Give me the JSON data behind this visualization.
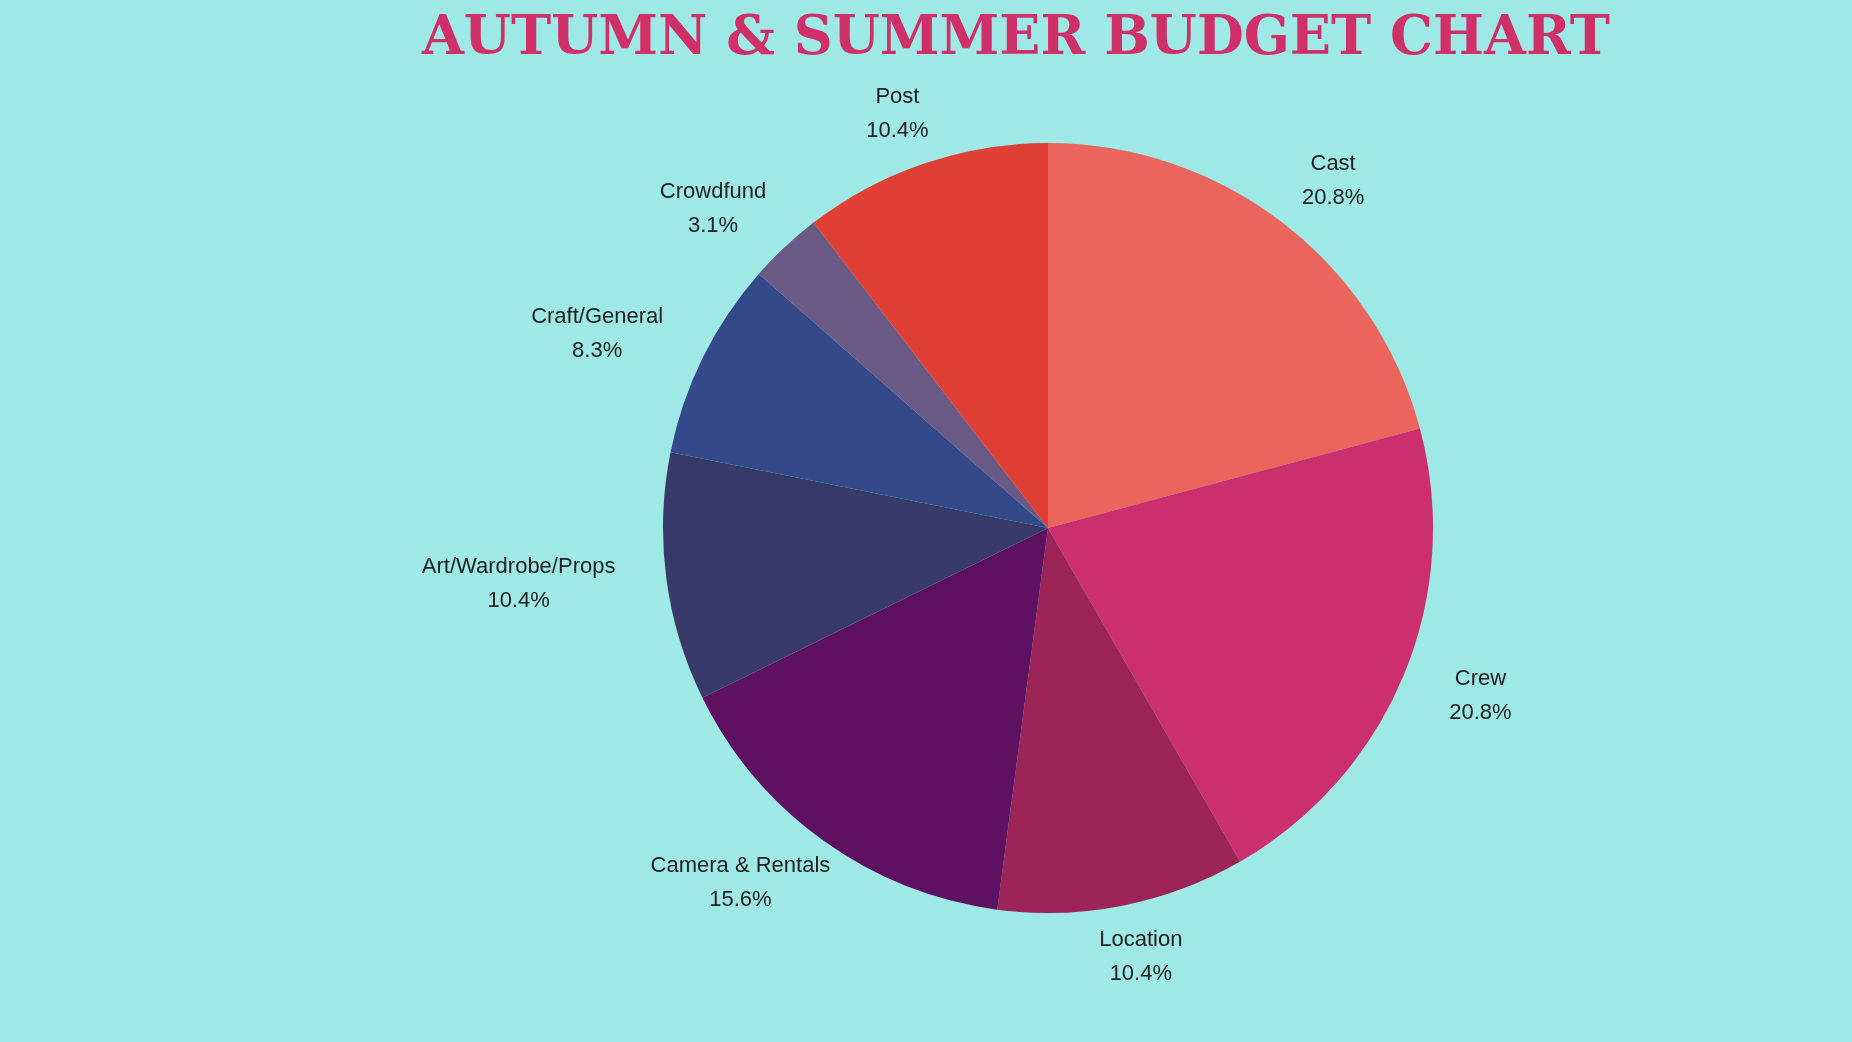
{
  "chart_data": {
    "type": "pie",
    "title": "AUTUMN & SUMMER BUDGET CHART",
    "categories": [
      "Cast",
      "Crew",
      "Location",
      "Camera & Rentals",
      "Art/Wardrobe/Props",
      "Craft/General",
      "Crowdfund",
      "Post"
    ],
    "values": [
      20.8,
      20.8,
      10.4,
      15.6,
      10.4,
      8.3,
      3.1,
      10.4
    ],
    "value_labels": [
      "20.8%",
      "20.8%",
      "10.4%",
      "15.6%",
      "10.4%",
      "8.3%",
      "3.1%",
      "10.4%"
    ],
    "colors": [
      "#eb655c",
      "#cb2f6d",
      "#9c2456",
      "#5e1160",
      "#383a69",
      "#33498a",
      "#6a5a85",
      "#e04034"
    ],
    "legend": false
  }
}
